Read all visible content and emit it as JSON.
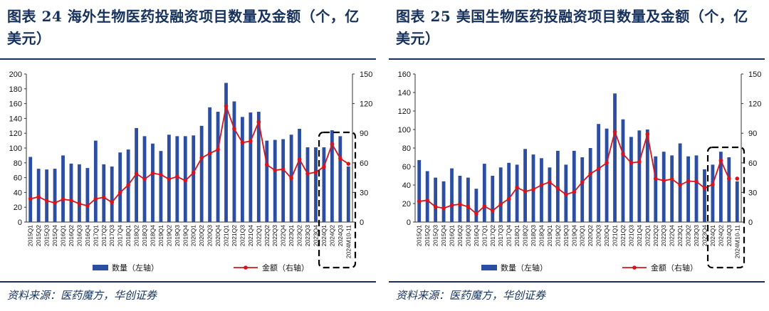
{
  "source_label": "资料来源：医药魔方，华创证券",
  "colors": {
    "bar": "#2b4ea2",
    "line": "#d7141d",
    "title": "#16325c"
  },
  "chart_data": [
    {
      "type": "bar",
      "title": "图表 24    海外生物医药投融资项目数量及金额（个，亿美元）",
      "left_ylim": [
        0,
        200
      ],
      "left_yticks": [
        0,
        20,
        40,
        60,
        80,
        100,
        120,
        140,
        160,
        180,
        200
      ],
      "right_ylim": [
        0,
        150
      ],
      "right_yticks": [
        0,
        30,
        60,
        90,
        120,
        150
      ],
      "grid": false,
      "legend_position": "bottom",
      "categories": [
        "2015Q1",
        "2015Q2",
        "2015Q3",
        "2015Q4",
        "2016Q1",
        "2016Q2",
        "2016Q3",
        "2016Q4",
        "2017Q1",
        "2017Q2",
        "2017Q3",
        "2017Q4",
        "2018Q1",
        "2018Q2",
        "2018Q3",
        "2018Q4",
        "2019Q1",
        "2019Q2",
        "2019Q3",
        "2019Q4",
        "2020Q1",
        "2020Q2",
        "2020Q3",
        "2020Q4",
        "2021Q1",
        "2021Q2",
        "2021Q3",
        "2021Q4",
        "2022Q1",
        "2022Q2",
        "2022Q3",
        "2022Q4",
        "2023Q1",
        "2023Q2",
        "2023Q3",
        "2023Q4",
        "2024Q1",
        "2024Q2",
        "2024Q3",
        "2024M10-11"
      ],
      "series": [
        {
          "name": "数量（左轴）",
          "type": "bar",
          "axis": "left",
          "values": [
            88,
            72,
            71,
            72,
            90,
            79,
            78,
            73,
            110,
            78,
            75,
            94,
            98,
            127,
            116,
            106,
            96,
            118,
            116,
            116,
            117,
            130,
            155,
            149,
            188,
            163,
            142,
            148,
            149,
            110,
            111,
            112,
            118,
            126,
            101,
            101,
            101,
            124,
            116,
            75
          ]
        },
        {
          "name": "金额（右轴）",
          "type": "line",
          "axis": "right",
          "values": [
            23.5,
            25.5,
            21.5,
            19.5,
            23,
            22,
            18.5,
            16.5,
            23.5,
            25,
            20,
            30,
            37.5,
            49,
            43.5,
            49.5,
            48,
            43.5,
            46,
            42,
            50,
            65,
            69.5,
            73.5,
            117.5,
            94.5,
            80.5,
            82,
            101.5,
            58,
            52.5,
            53.5,
            44.5,
            63.5,
            49,
            50.5,
            56,
            79,
            64.5,
            59
          ]
        }
      ],
      "highlight_from_index": 36
    },
    {
      "type": "bar",
      "title": "图表 25    美国生物医药投融资项目数量及金额（个，亿美元）",
      "left_ylim": [
        0,
        160
      ],
      "left_yticks": [
        0,
        20,
        40,
        60,
        80,
        100,
        120,
        140,
        160
      ],
      "right_ylim": [
        0,
        150
      ],
      "right_yticks": [
        0,
        30,
        60,
        90,
        120,
        150
      ],
      "grid": false,
      "legend_position": "bottom",
      "categories": [
        "2015Q1",
        "2015Q2",
        "2015Q3",
        "2015Q4",
        "2016Q1",
        "2016Q2",
        "2016Q3",
        "2016Q4",
        "2017Q1",
        "2017Q2",
        "2017Q3",
        "2017Q4",
        "2018Q1",
        "2018Q2",
        "2018Q3",
        "2018Q4",
        "2019Q1",
        "2019Q2",
        "2019Q3",
        "2019Q4",
        "2020Q1",
        "2020Q2",
        "2020Q3",
        "2020Q4",
        "2021Q1",
        "2021Q2",
        "2021Q3",
        "2021Q4",
        "2022Q1",
        "2022Q2",
        "2022Q3",
        "2022Q4",
        "2023Q1",
        "2023Q2",
        "2023Q3",
        "2023Q4",
        "2024Q1",
        "2024Q2",
        "2024Q3",
        "2024M10-11"
      ],
      "series": [
        {
          "name": "数量（左轴）",
          "type": "bar",
          "axis": "left",
          "values": [
            67,
            55,
            48,
            44,
            58,
            50,
            48,
            36,
            63,
            50,
            59,
            64,
            62,
            79,
            73,
            69,
            59,
            77,
            62,
            77,
            70,
            80,
            106,
            101,
            139,
            111,
            92,
            99,
            100,
            71,
            76,
            72,
            85,
            71,
            72,
            57,
            62,
            76,
            70,
            44
          ]
        },
        {
          "name": "金额（右轴）",
          "type": "line",
          "axis": "right",
          "values": [
            21,
            22,
            15.5,
            14,
            17,
            18,
            15.5,
            8.5,
            16,
            11.5,
            18,
            23.5,
            35,
            31,
            33,
            37.5,
            40.5,
            34,
            28,
            30.5,
            40.5,
            49,
            54,
            60,
            91.5,
            69,
            60,
            61,
            89,
            44,
            42,
            43.5,
            37.5,
            41.5,
            41,
            34.5,
            38,
            62.5,
            44,
            44
          ]
        }
      ],
      "highlight_from_index": 36
    }
  ]
}
